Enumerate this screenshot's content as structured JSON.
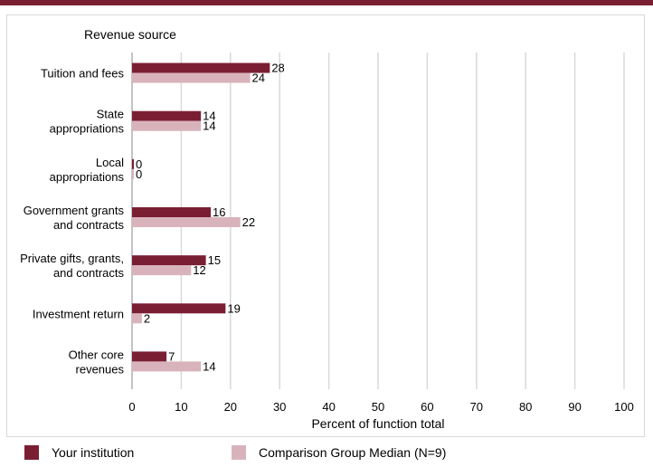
{
  "colors": {
    "institution": "#7a1f33",
    "comparison": "#d9b3bc",
    "grid": "#d9d9d9",
    "rule": "#7a1f33"
  },
  "chart_data": {
    "type": "bar",
    "orientation": "horizontal",
    "title": "Revenue source",
    "xlabel": "Percent of function total",
    "xlim": [
      0,
      100
    ],
    "xticks": [
      0,
      10,
      20,
      30,
      40,
      50,
      60,
      70,
      80,
      90,
      100
    ],
    "grid": true,
    "legend_position": "bottom",
    "categories": [
      [
        "Tuition and fees"
      ],
      [
        "State",
        "appropriations"
      ],
      [
        "Local",
        "appropriations"
      ],
      [
        "Government grants",
        "and contracts"
      ],
      [
        "Private gifts, grants,",
        "and contracts"
      ],
      [
        "Investment return"
      ],
      [
        "Other core",
        "revenues"
      ]
    ],
    "series": [
      {
        "name": "Your institution",
        "values": [
          28,
          14,
          0,
          16,
          15,
          19,
          7
        ]
      },
      {
        "name": "Comparison Group Median (N=9)",
        "values": [
          24,
          14,
          0,
          22,
          12,
          2,
          14
        ]
      }
    ]
  },
  "legend": {
    "institution_label": "Your institution",
    "comparison_label": "Comparison Group Median (N=9)"
  }
}
